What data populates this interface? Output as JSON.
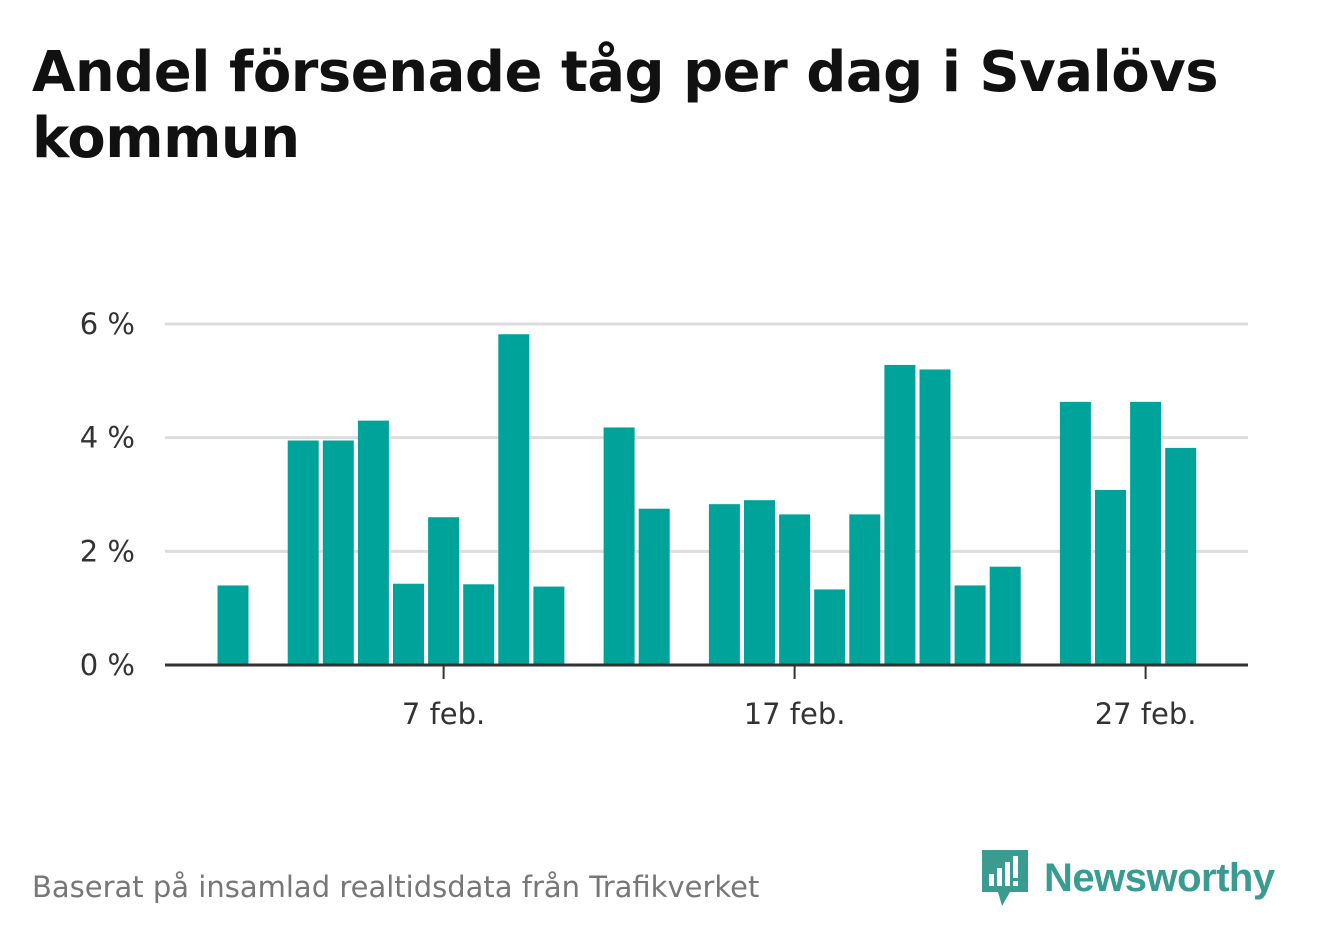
{
  "title": "Andel försenade tåg per dag i Svalövs kommun",
  "footer": "Baserat på insamlad realtidsdata från Trafikverket",
  "brand": "Newsworthy",
  "colors": {
    "bar": "#00a39a",
    "grid": "#dddddd",
    "axis": "#333333",
    "brand": "#3a9b91"
  },
  "chart_data": {
    "type": "bar",
    "x": [
      1,
      2,
      3,
      4,
      5,
      6,
      7,
      8,
      9,
      10,
      11,
      12,
      13,
      14,
      15,
      16,
      17,
      18,
      19,
      20,
      21,
      22,
      23,
      24,
      25,
      26,
      27,
      28,
      29,
      30
    ],
    "values": [
      1.4,
      null,
      3.95,
      3.95,
      4.3,
      1.43,
      2.6,
      1.42,
      5.82,
      1.38,
      null,
      4.18,
      2.75,
      null,
      2.83,
      2.9,
      2.65,
      1.33,
      2.65,
      5.28,
      5.2,
      1.4,
      1.73,
      null,
      4.63,
      3.08,
      4.63,
      3.82,
      null,
      null
    ],
    "xticks": [
      {
        "x": 7,
        "label": "7 feb."
      },
      {
        "x": 17,
        "label": "17 feb."
      },
      {
        "x": 27,
        "label": "27 feb."
      }
    ],
    "yticks": [
      {
        "y": 0,
        "label": "0 %"
      },
      {
        "y": 2,
        "label": "2 %"
      },
      {
        "y": 4,
        "label": "4 %"
      },
      {
        "y": 6,
        "label": "6 %"
      }
    ],
    "ylim": [
      0,
      6
    ],
    "xlabel": "",
    "ylabel": "",
    "grid": true
  }
}
